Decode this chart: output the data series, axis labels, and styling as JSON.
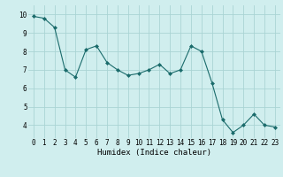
{
  "x": [
    0,
    1,
    2,
    3,
    4,
    5,
    6,
    7,
    8,
    9,
    10,
    11,
    12,
    13,
    14,
    15,
    16,
    17,
    18,
    19,
    20,
    21,
    22,
    23
  ],
  "y": [
    9.9,
    9.8,
    9.3,
    7.0,
    6.6,
    8.1,
    8.3,
    7.4,
    7.0,
    6.7,
    6.8,
    7.0,
    7.3,
    6.8,
    7.0,
    8.3,
    8.0,
    6.3,
    4.3,
    3.6,
    4.0,
    4.6,
    4.0,
    3.9
  ],
  "line_color": "#1a6b6b",
  "bg_color": "#d0eeee",
  "grid_color": "#aad4d4",
  "xlabel": "Humidex (Indice chaleur)",
  "ylabel_ticks": [
    4,
    5,
    6,
    7,
    8,
    9,
    10
  ],
  "xtick_labels": [
    "0",
    "1",
    "2",
    "3",
    "4",
    "5",
    "6",
    "7",
    "8",
    "9",
    "10",
    "11",
    "12",
    "13",
    "14",
    "15",
    "16",
    "17",
    "18",
    "19",
    "20",
    "21",
    "22",
    "23"
  ],
  "ylim": [
    3.3,
    10.5
  ],
  "xlim": [
    -0.5,
    23.5
  ],
  "label_fontsize": 6.5,
  "tick_fontsize": 5.5
}
